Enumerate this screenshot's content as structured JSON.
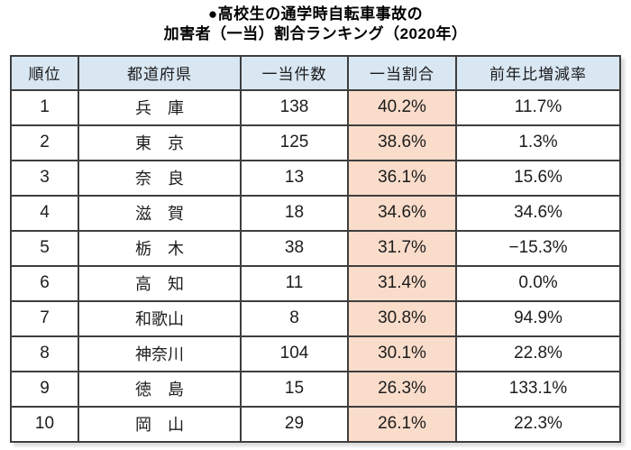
{
  "title": {
    "line1": "●高校生の通学時自転車事故の",
    "line2": "加害者（一当）割合ランキング（2020年）"
  },
  "table": {
    "headers": [
      "順位",
      "都道府県",
      "一当件数",
      "一当割合",
      "前年比増減率"
    ],
    "rows": [
      {
        "rank": "1",
        "prefecture": "兵　庫",
        "cases": "138",
        "ratio": "40.2%",
        "yoy": "11.7%"
      },
      {
        "rank": "2",
        "prefecture": "東　京",
        "cases": "125",
        "ratio": "38.6%",
        "yoy": "1.3%"
      },
      {
        "rank": "3",
        "prefecture": "奈　良",
        "cases": "13",
        "ratio": "36.1%",
        "yoy": "15.6%"
      },
      {
        "rank": "4",
        "prefecture": "滋　賀",
        "cases": "18",
        "ratio": "34.6%",
        "yoy": "34.6%"
      },
      {
        "rank": "5",
        "prefecture": "栃　木",
        "cases": "38",
        "ratio": "31.7%",
        "yoy": "−15.3%"
      },
      {
        "rank": "6",
        "prefecture": "高　知",
        "cases": "11",
        "ratio": "31.4%",
        "yoy": "0.0%"
      },
      {
        "rank": "7",
        "prefecture": "和歌山",
        "cases": "8",
        "ratio": "30.8%",
        "yoy": "94.9%"
      },
      {
        "rank": "8",
        "prefecture": "神奈川",
        "cases": "104",
        "ratio": "30.1%",
        "yoy": "22.8%"
      },
      {
        "rank": "9",
        "prefecture": "徳　島",
        "cases": "15",
        "ratio": "26.3%",
        "yoy": "133.1%"
      },
      {
        "rank": "10",
        "prefecture": "岡　山",
        "cases": "29",
        "ratio": "26.1%",
        "yoy": "22.3%"
      }
    ]
  },
  "colors": {
    "header_bg": "#d9e7f3",
    "ratio_bg": "#fadcca",
    "border": "#3e3e3e",
    "text": "#1c1c1c"
  },
  "chart_data": {
    "type": "table",
    "title": "●高校生の通学時自転車事故の加害者（一当）割合ランキング（2020年）",
    "columns": [
      "順位",
      "都道府県",
      "一当件数",
      "一当割合",
      "前年比増減率"
    ],
    "rows": [
      [
        1,
        "兵庫",
        138,
        "40.2%",
        "11.7%"
      ],
      [
        2,
        "東京",
        125,
        "38.6%",
        "1.3%"
      ],
      [
        3,
        "奈良",
        13,
        "36.1%",
        "15.6%"
      ],
      [
        4,
        "滋賀",
        18,
        "34.6%",
        "34.6%"
      ],
      [
        5,
        "栃木",
        38,
        "31.7%",
        "-15.3%"
      ],
      [
        6,
        "高知",
        11,
        "31.4%",
        "0.0%"
      ],
      [
        7,
        "和歌山",
        8,
        "30.8%",
        "94.9%"
      ],
      [
        8,
        "神奈川",
        104,
        "30.1%",
        "22.8%"
      ],
      [
        9,
        "徳島",
        15,
        "26.3%",
        "133.1%"
      ],
      [
        10,
        "岡山",
        29,
        "26.1%",
        "22.3%"
      ]
    ],
    "layout_hints": {
      "highlighted_column": "一当割合",
      "highlight_color": "#fadcca",
      "header_color": "#d9e7f3"
    }
  }
}
